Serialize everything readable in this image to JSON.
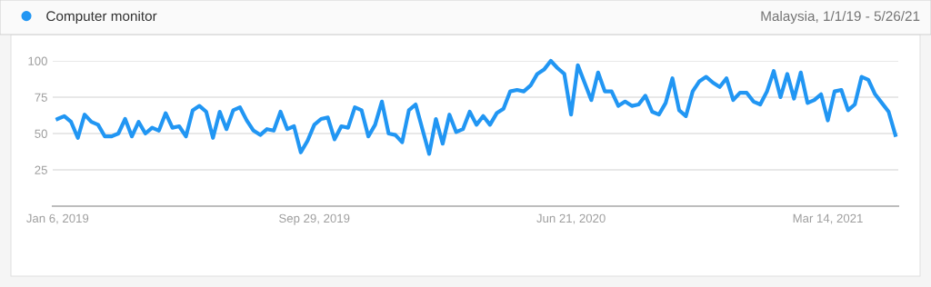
{
  "chart_data": {
    "type": "line",
    "annotations": [
      "Malaysia, 1/1/19 - 5/26/21"
    ],
    "x": [
      "2019-01-06",
      "2019-01-13",
      "2019-01-20",
      "2019-01-27",
      "2019-02-03",
      "2019-02-10",
      "2019-02-17",
      "2019-02-24",
      "2019-03-03",
      "2019-03-10",
      "2019-03-17",
      "2019-03-24",
      "2019-03-31",
      "2019-04-07",
      "2019-04-14",
      "2019-04-21",
      "2019-04-28",
      "2019-05-05",
      "2019-05-12",
      "2019-05-19",
      "2019-05-26",
      "2019-06-02",
      "2019-06-09",
      "2019-06-16",
      "2019-06-23",
      "2019-06-30",
      "2019-07-07",
      "2019-07-14",
      "2019-07-21",
      "2019-07-28",
      "2019-08-04",
      "2019-08-11",
      "2019-08-18",
      "2019-08-25",
      "2019-09-01",
      "2019-09-08",
      "2019-09-15",
      "2019-09-22",
      "2019-09-29",
      "2019-10-06",
      "2019-10-13",
      "2019-10-20",
      "2019-10-27",
      "2019-11-03",
      "2019-11-10",
      "2019-11-17",
      "2019-11-24",
      "2019-12-01",
      "2019-12-08",
      "2019-12-15",
      "2019-12-22",
      "2019-12-29",
      "2020-01-05",
      "2020-01-12",
      "2020-01-19",
      "2020-01-26",
      "2020-02-02",
      "2020-02-09",
      "2020-02-16",
      "2020-02-23",
      "2020-03-01",
      "2020-03-08",
      "2020-03-15",
      "2020-03-22",
      "2020-03-29",
      "2020-04-05",
      "2020-04-12",
      "2020-04-19",
      "2020-04-26",
      "2020-05-03",
      "2020-05-10",
      "2020-05-17",
      "2020-05-24",
      "2020-05-31",
      "2020-06-07",
      "2020-06-14",
      "2020-06-21",
      "2020-06-28",
      "2020-07-05",
      "2020-07-12",
      "2020-07-19",
      "2020-07-26",
      "2020-08-02",
      "2020-08-09",
      "2020-08-16",
      "2020-08-23",
      "2020-08-30",
      "2020-09-06",
      "2020-09-13",
      "2020-09-20",
      "2020-09-27",
      "2020-10-04",
      "2020-10-11",
      "2020-10-18",
      "2020-10-25",
      "2020-11-01",
      "2020-11-08",
      "2020-11-15",
      "2020-11-22",
      "2020-11-29",
      "2020-12-06",
      "2020-12-13",
      "2020-12-20",
      "2020-12-27",
      "2021-01-03",
      "2021-01-10",
      "2021-01-17",
      "2021-01-24",
      "2021-01-31",
      "2021-02-07",
      "2021-02-14",
      "2021-02-21",
      "2021-02-28",
      "2021-03-07",
      "2021-03-14",
      "2021-03-21",
      "2021-03-28",
      "2021-04-04",
      "2021-04-11",
      "2021-04-18",
      "2021-04-25",
      "2021-05-02",
      "2021-05-09",
      "2021-05-16",
      "2021-05-23"
    ],
    "series": [
      {
        "name": "Computer monitor",
        "color": "#2196f3",
        "values": [
          60,
          62,
          58,
          47,
          63,
          58,
          56,
          48,
          48,
          50,
          60,
          48,
          58,
          50,
          54,
          52,
          64,
          54,
          55,
          48,
          66,
          69,
          65,
          47,
          65,
          53,
          66,
          68,
          59,
          52,
          49,
          53,
          52,
          65,
          53,
          55,
          37,
          45,
          56,
          60,
          61,
          46,
          55,
          54,
          68,
          66,
          48,
          56,
          72,
          50,
          49,
          44,
          66,
          70,
          53,
          36,
          60,
          43,
          63,
          51,
          53,
          65,
          56,
          62,
          56,
          64,
          67,
          79,
          80,
          79,
          83,
          91,
          94,
          100,
          95,
          91,
          63,
          97,
          85,
          73,
          92,
          79,
          79,
          69,
          72,
          69,
          70,
          76,
          65,
          63,
          71,
          88,
          66,
          62,
          79,
          86,
          89,
          85,
          82,
          88,
          73,
          78,
          78,
          72,
          70,
          79,
          93,
          75,
          91,
          74,
          92,
          71,
          73,
          77,
          59,
          79,
          80,
          66,
          70,
          89,
          87,
          77,
          71,
          65,
          49
        ]
      }
    ],
    "xlim": [
      "2019-01-01",
      "2021-05-26"
    ],
    "xticks": [
      {
        "value": "2019-01-06",
        "label": "Jan 6, 2019"
      },
      {
        "value": "2019-09-29",
        "label": "Sep 29, 2019"
      },
      {
        "value": "2020-06-21",
        "label": "Jun 21, 2020"
      },
      {
        "value": "2021-03-14",
        "label": "Mar 14, 2021"
      }
    ],
    "ylim": [
      0,
      100
    ],
    "yticks": [
      25,
      50,
      75,
      100
    ],
    "grid": "y",
    "legend": "top left",
    "marker": "none",
    "line_style": "solid"
  }
}
